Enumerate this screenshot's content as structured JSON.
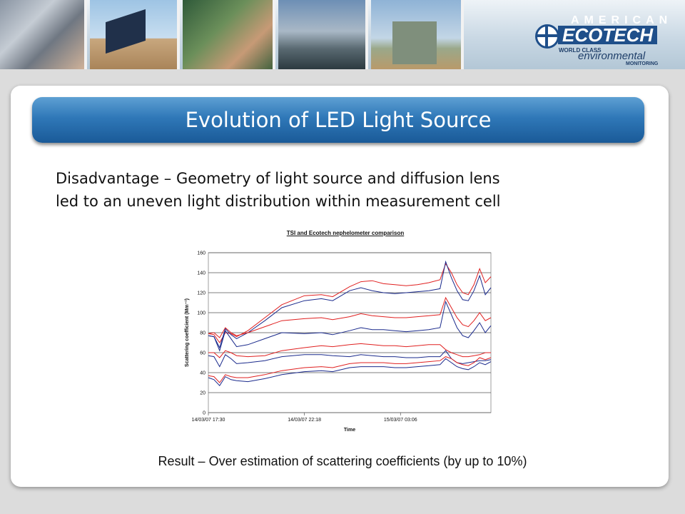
{
  "banner": {
    "photos": [
      "photo-rack-equipment",
      "photo-solar-panel",
      "photo-electronics-work",
      "photo-instrument-cabinet",
      "photo-monitoring-station"
    ],
    "logo": {
      "word1": "AMERICAN",
      "word2": "ECOTECH",
      "tagline1": "WORLD CLASS",
      "tagline2": "environmental",
      "tagline3": "MONITORING"
    }
  },
  "slide": {
    "title": "Evolution of LED Light Source",
    "subtitle_line1": "Disadvantage – Geometry of light source and diffusion lens",
    "subtitle_line2": "led to an uneven light distribution within measurement cell",
    "result": "Result – Over estimation of scattering coefficients (by up to 10%)"
  },
  "colors": {
    "title_bar": "#2f78b8",
    "series_tsi": "#e02020",
    "series_ecotech": "#1a2a8c"
  },
  "chart_data": {
    "type": "line",
    "title": "TSI and Ecotech nephelometer comparison",
    "xlabel": "Time",
    "ylabel": "Scattering coefficient (Mm⁻¹)",
    "ylim": [
      0,
      160
    ],
    "yticks": [
      0,
      20,
      40,
      60,
      80,
      100,
      120,
      140,
      160
    ],
    "xlim": [
      0,
      100
    ],
    "xtick_labels": [
      {
        "x": 0,
        "label": "14/03/07 17:30"
      },
      {
        "x": 34,
        "label": "14/03/07 22:18"
      },
      {
        "x": 68,
        "label": "15/03/07 03:06"
      }
    ],
    "grid": true,
    "x": [
      0,
      2,
      4,
      6,
      8,
      10,
      14,
      20,
      26,
      34,
      40,
      44,
      50,
      54,
      58,
      62,
      66,
      70,
      74,
      78,
      82,
      84,
      86,
      88,
      90,
      92,
      94,
      96,
      98,
      100
    ],
    "series": [
      {
        "color": "#e02020",
        "values": [
          79,
          78,
          70,
          80,
          79,
          76,
          82,
          95,
          108,
          117,
          118,
          116,
          126,
          131,
          132,
          129,
          128,
          127,
          128,
          130,
          133,
          149,
          140,
          128,
          120,
          118,
          128,
          144,
          130,
          136
        ]
      },
      {
        "color": "#1a2a8c",
        "values": [
          77,
          76,
          65,
          84,
          78,
          74,
          80,
          92,
          105,
          112,
          114,
          112,
          122,
          125,
          122,
          120,
          119,
          120,
          121,
          122,
          124,
          151,
          135,
          122,
          113,
          112,
          122,
          137,
          118,
          125
        ]
      },
      {
        "color": "#e02020",
        "values": [
          79,
          80,
          75,
          85,
          80,
          77,
          80,
          86,
          92,
          94,
          95,
          93,
          96,
          99,
          97,
          96,
          95,
          95,
          96,
          97,
          98,
          115,
          105,
          95,
          88,
          86,
          92,
          100,
          92,
          95
        ]
      },
      {
        "color": "#1a2a8c",
        "values": [
          77,
          76,
          62,
          82,
          74,
          66,
          68,
          74,
          80,
          79,
          80,
          78,
          82,
          85,
          83,
          83,
          82,
          81,
          82,
          83,
          85,
          111,
          98,
          85,
          77,
          75,
          82,
          90,
          80,
          87
        ]
      },
      {
        "color": "#e02020",
        "values": [
          60,
          60,
          55,
          62,
          60,
          57,
          56,
          57,
          62,
          65,
          67,
          66,
          68,
          69,
          68,
          67,
          67,
          66,
          67,
          68,
          68,
          63,
          60,
          58,
          56,
          56,
          57,
          58,
          60,
          60
        ]
      },
      {
        "color": "#1a2a8c",
        "values": [
          57,
          56,
          46,
          58,
          54,
          49,
          50,
          52,
          56,
          58,
          58,
          57,
          56,
          58,
          57,
          56,
          56,
          55,
          55,
          56,
          56,
          62,
          54,
          50,
          49,
          50,
          51,
          52,
          52,
          53
        ]
      },
      {
        "color": "#e02020",
        "values": [
          37,
          36,
          30,
          38,
          36,
          35,
          35,
          38,
          42,
          45,
          46,
          45,
          49,
          50,
          50,
          50,
          49,
          49,
          50,
          51,
          52,
          56,
          54,
          50,
          48,
          47,
          50,
          55,
          53,
          55
        ]
      },
      {
        "color": "#1a2a8c",
        "values": [
          35,
          33,
          27,
          36,
          33,
          32,
          31,
          34,
          38,
          41,
          42,
          41,
          45,
          46,
          46,
          46,
          45,
          45,
          46,
          47,
          48,
          54,
          50,
          46,
          44,
          43,
          46,
          50,
          48,
          51
        ]
      }
    ]
  }
}
